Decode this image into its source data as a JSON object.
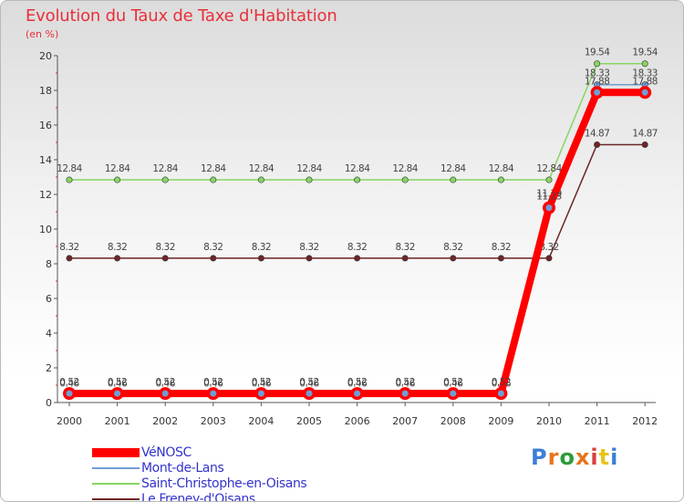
{
  "title": "Evolution du Taux de Taxe d'Habitation",
  "unit": "(en %)",
  "legend": [
    {
      "label": "VéNOSC",
      "color": "#ff0000"
    },
    {
      "label": "Mont-de-Lans",
      "color": "#6e9ed6"
    },
    {
      "label": "Saint-Christophe-en-Oisans",
      "color": "#86d660"
    },
    {
      "label": "Le Freney-d'Oisans",
      "color": "#6e2525"
    }
  ],
  "logo": {
    "letters": [
      "P",
      "r",
      "o",
      "x",
      "i",
      "t",
      "i"
    ],
    "colors": [
      "#3b7fd4",
      "#e8741c",
      "#2b9c3a",
      "#e8741c",
      "#d64040",
      "#e8c41c",
      "#3b7fd4"
    ]
  },
  "chart_data": {
    "type": "line",
    "title": "Evolution du Taux de Taxe d'Habitation",
    "ylabel": "(en %)",
    "xlabel": "",
    "ylim": [
      0,
      20
    ],
    "yticks": [
      0,
      2,
      4,
      6,
      8,
      10,
      12,
      14,
      16,
      18,
      20
    ],
    "x": [
      "2000",
      "2001",
      "2002",
      "2003",
      "2004",
      "2005",
      "2006",
      "2007",
      "2008",
      "2009",
      "2010",
      "2011",
      "2012"
    ],
    "series": [
      {
        "name": "Le Freney-d'Oisans",
        "color": "#6e2525",
        "label_pos": "above",
        "values": [
          8.32,
          8.32,
          8.32,
          8.32,
          8.32,
          8.32,
          8.32,
          8.32,
          8.32,
          8.32,
          8.32,
          14.87,
          14.87
        ],
        "labels": [
          "8.32",
          "8.32",
          "8.32",
          "8.32",
          "8.32",
          "8.32",
          "8.32",
          "8.32",
          "8.32",
          "8.32",
          "8.32",
          "14.87",
          "14.87"
        ]
      },
      {
        "name": "Saint-Christophe-en-Oisans",
        "color": "#86d660",
        "label_pos": "above",
        "values": [
          12.84,
          12.84,
          12.84,
          12.84,
          12.84,
          12.84,
          12.84,
          12.84,
          12.84,
          12.84,
          12.84,
          19.54,
          19.54
        ],
        "labels": [
          "12.84",
          "12.84",
          "12.84",
          "12.84",
          "12.84",
          "12.84",
          "12.84",
          "12.84",
          "12.84",
          "12.84",
          "12.84",
          "19.54",
          "19.54"
        ]
      },
      {
        "name": "Mont-de-Lans",
        "color": "#6e9ed6",
        "label_pos": "above",
        "values": [
          0.46,
          0.46,
          0.46,
          0.46,
          0.46,
          0.46,
          0.46,
          0.46,
          0.46,
          0.46,
          11.39,
          18.33,
          18.33
        ],
        "labels": [
          "0.46",
          "0.46",
          "0.46",
          "0.46",
          "0.46",
          "0.46",
          "0.46",
          "0.46",
          "0.46",
          "0.46",
          "11.39",
          "18.33",
          "18.33"
        ]
      },
      {
        "name": "VéNOSC",
        "color": "#ff0000",
        "label_pos": "above",
        "values": [
          0.52,
          0.52,
          0.52,
          0.52,
          0.52,
          0.52,
          0.52,
          0.52,
          0.52,
          0.52,
          11.23,
          17.88,
          17.88
        ],
        "labels": [
          "0.52",
          "0.52",
          "0.52",
          "0.52",
          "0.52",
          "0.52",
          "0.52",
          "0.52",
          "0.52",
          "0.52",
          "11.23",
          "17.88",
          "17.88"
        ]
      }
    ]
  }
}
